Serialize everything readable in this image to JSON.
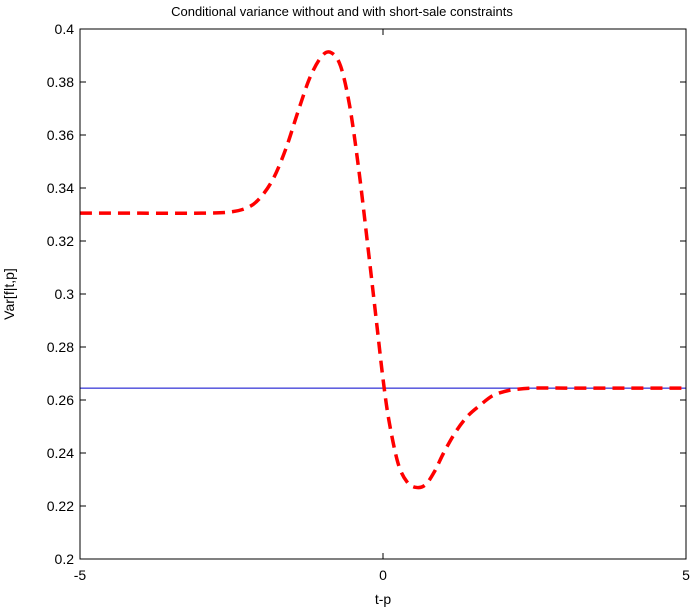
{
  "chart_data": {
    "type": "line",
    "title": "Conditional variance without and with short-sale constraints",
    "xlabel": "t-p",
    "ylabel": "Var[f|t,p]",
    "xlim": [
      -5,
      5
    ],
    "ylim": [
      0.2,
      0.4
    ],
    "xticks": [
      -5,
      0,
      5
    ],
    "xtick_labels": [
      "-5",
      "0",
      "5"
    ],
    "yticks": [
      0.2,
      0.22,
      0.24,
      0.26,
      0.28,
      0.3,
      0.32,
      0.34,
      0.36,
      0.38,
      0.4
    ],
    "ytick_labels": [
      "0.2",
      "0.22",
      "0.24",
      "0.26",
      "0.28",
      "0.3",
      "0.32",
      "0.34",
      "0.36",
      "0.38",
      "0.4"
    ],
    "grid": false,
    "legend": "none",
    "series": [
      {
        "style": "solid",
        "color": "#0000cc",
        "x": [
          -5,
          5
        ],
        "y": [
          0.2645,
          0.2645
        ]
      },
      {
        "style": "dashed",
        "color": "#ff0000",
        "x": [
          -5,
          -4,
          -3,
          -2.5,
          -2.2,
          -2.0,
          -1.8,
          -1.6,
          -1.4,
          -1.2,
          -1.0,
          -0.85,
          -0.7,
          -0.55,
          -0.4,
          -0.25,
          -0.1,
          0.0,
          0.1,
          0.25,
          0.4,
          0.55,
          0.7,
          0.85,
          1.0,
          1.2,
          1.4,
          1.6,
          1.8,
          2.0,
          2.2,
          2.5,
          3,
          4,
          5
        ],
        "y": [
          0.3305,
          0.3305,
          0.3305,
          0.331,
          0.333,
          0.337,
          0.344,
          0.355,
          0.369,
          0.382,
          0.39,
          0.391,
          0.386,
          0.371,
          0.347,
          0.318,
          0.288,
          0.268,
          0.252,
          0.236,
          0.229,
          0.227,
          0.228,
          0.233,
          0.24,
          0.248,
          0.254,
          0.258,
          0.2615,
          0.2632,
          0.264,
          0.2645,
          0.2645,
          0.2645,
          0.2645
        ]
      }
    ]
  }
}
